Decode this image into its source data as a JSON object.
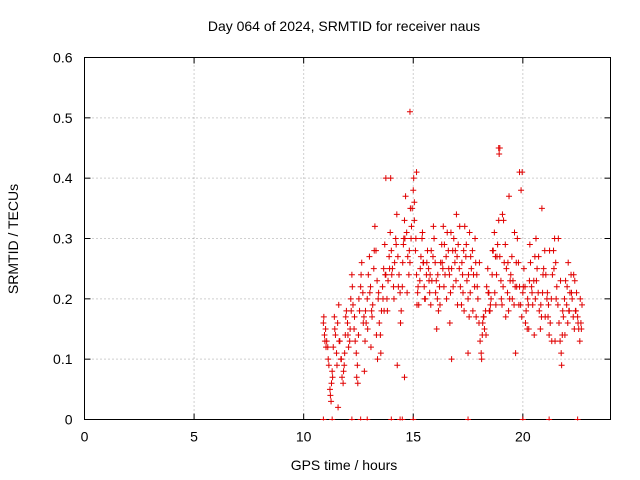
{
  "chart_data": {
    "type": "scatter",
    "title": "Day 064 of 2024, SRMTID for receiver naus",
    "xlabel": "GPS time / hours",
    "ylabel": "SRMTID / TECUs",
    "xlim": [
      0,
      24
    ],
    "ylim": [
      0,
      0.6
    ],
    "xticks": [
      0,
      5,
      10,
      15,
      20
    ],
    "yticks": [
      0,
      0.1,
      0.2,
      0.3,
      0.4,
      0.5,
      0.6
    ],
    "xtick_labels": [
      "0",
      "5",
      "10",
      "15",
      "20"
    ],
    "ytick_labels": [
      "0",
      "0.1",
      "0.2",
      "0.3",
      "0.4",
      "0.5",
      "0.6"
    ],
    "grid": true,
    "legend": "none",
    "series": [
      {
        "name": "SRMTID",
        "marker": "+",
        "color": "#e00000",
        "x": [
          10.9,
          10.95,
          11.0,
          11.05,
          11.1,
          11.15,
          11.2,
          11.25,
          11.3,
          11.35,
          11.4,
          11.45,
          11.5,
          11.55,
          11.6,
          11.65,
          11.7,
          11.75,
          11.8,
          11.85,
          11.9,
          11.95,
          12.0,
          12.05,
          12.1,
          12.15,
          12.2,
          12.25,
          12.3,
          12.35,
          12.4,
          12.45,
          12.5,
          12.55,
          12.6,
          12.65,
          12.7,
          12.75,
          12.8,
          12.85,
          12.9,
          12.95,
          13.0,
          13.05,
          13.1,
          13.15,
          13.2,
          13.25,
          13.3,
          13.35,
          13.4,
          13.45,
          13.5,
          13.55,
          13.6,
          13.65,
          13.7,
          13.75,
          13.8,
          13.85,
          13.9,
          13.95,
          14.0,
          14.05,
          14.1,
          14.15,
          14.2,
          14.25,
          14.3,
          14.35,
          14.4,
          14.45,
          14.5,
          14.55,
          14.6,
          14.65,
          14.7,
          14.75,
          14.8,
          14.85,
          14.9,
          14.95,
          15.0,
          15.05,
          15.1,
          15.15,
          15.2,
          15.25,
          15.3,
          15.35,
          15.4,
          15.45,
          15.5,
          15.55,
          15.6,
          15.65,
          15.7,
          15.75,
          15.8,
          15.85,
          15.9,
          15.95,
          16.0,
          16.05,
          16.1,
          16.15,
          16.2,
          16.25,
          16.3,
          16.35,
          16.4,
          16.45,
          16.5,
          16.55,
          16.6,
          16.65,
          16.7,
          16.75,
          16.8,
          16.85,
          16.9,
          16.95,
          17.0,
          17.05,
          17.1,
          17.15,
          17.2,
          17.25,
          17.3,
          17.35,
          17.4,
          17.45,
          17.5,
          17.55,
          17.6,
          17.65,
          17.7,
          17.75,
          17.8,
          17.85,
          17.9,
          17.95,
          18.0,
          18.05,
          18.1,
          18.15,
          18.2,
          18.25,
          18.3,
          18.35,
          18.4,
          18.45,
          18.5,
          18.55,
          18.6,
          18.65,
          18.7,
          18.75,
          18.8,
          18.85,
          18.9,
          18.95,
          19.0,
          19.05,
          19.1,
          19.15,
          19.2,
          19.25,
          19.3,
          19.35,
          19.4,
          19.45,
          19.5,
          19.55,
          19.6,
          19.65,
          19.7,
          19.75,
          19.8,
          19.85,
          19.9,
          19.95,
          20.0,
          20.05,
          20.1,
          20.15,
          20.2,
          20.25,
          20.3,
          20.35,
          20.4,
          20.45,
          20.5,
          20.55,
          20.6,
          20.65,
          20.7,
          20.75,
          20.8,
          20.85,
          20.9,
          20.95,
          21.0,
          21.05,
          21.1,
          21.15,
          21.2,
          21.25,
          21.3,
          21.35,
          21.4,
          21.45,
          21.5,
          21.55,
          21.6,
          21.65,
          21.7,
          21.75,
          21.8,
          21.85,
          21.9,
          21.95,
          22.0,
          22.05,
          22.1,
          22.15,
          22.2,
          22.25,
          22.3,
          22.35,
          22.4,
          22.45,
          22.5,
          22.55,
          22.6,
          22.65,
          22.7,
          10.92,
          11.02,
          11.12,
          11.22,
          11.32,
          11.42,
          11.52,
          11.62,
          11.72,
          11.82,
          11.92,
          12.02,
          12.12,
          12.22,
          12.32,
          12.42,
          12.52,
          12.62,
          12.72,
          12.82,
          12.92,
          13.02,
          13.12,
          13.22,
          13.32,
          13.42,
          13.52,
          13.62,
          13.72,
          13.82,
          13.92,
          14.02,
          14.12,
          14.22,
          14.32,
          14.42,
          14.52,
          14.62,
          14.72,
          14.82,
          14.92,
          15.02,
          15.12,
          15.22,
          15.32,
          15.42,
          15.52,
          15.62,
          15.72,
          15.82,
          15.92,
          16.02,
          16.12,
          16.22,
          16.32,
          16.42,
          16.52,
          16.62,
          16.72,
          16.82,
          16.92,
          17.02,
          17.12,
          17.22,
          17.32,
          17.42,
          17.52,
          17.62,
          17.72,
          17.82,
          17.92,
          18.02,
          18.12,
          18.22,
          18.32,
          18.42,
          18.52,
          18.62,
          18.72,
          18.82,
          18.92,
          19.02,
          19.12,
          19.22,
          19.32,
          19.42,
          19.52,
          19.62,
          19.72,
          19.82,
          19.92,
          20.02,
          20.12,
          20.22,
          20.32,
          20.42,
          20.52,
          20.62,
          20.72,
          20.82,
          20.92,
          21.02,
          21.12,
          21.22,
          21.32,
          21.42,
          21.52,
          21.62,
          21.72,
          21.82,
          21.92,
          22.02,
          22.12,
          22.22,
          22.32,
          22.42,
          22.52,
          22.62,
          10.97,
          11.27,
          11.57,
          11.87,
          12.17,
          12.47,
          12.77,
          13.07,
          13.37,
          13.67,
          13.97,
          14.27,
          14.57,
          14.87,
          15.17,
          15.47,
          15.77,
          16.07,
          16.37,
          16.67,
          16.97,
          17.27,
          17.57,
          17.87,
          18.17,
          18.47,
          18.77,
          19.07,
          19.37,
          19.67,
          19.97,
          20.27,
          20.57,
          20.87,
          21.17,
          21.47,
          21.77,
          22.07,
          22.37,
          22.67,
          14.85,
          15.15,
          18.9,
          18.95,
          19.85,
          13.75,
          16.75,
          14.6,
          15.05,
          17.5
        ],
        "y": [
          0.16,
          0.14,
          0.15,
          0.13,
          0.12,
          0.09,
          0.05,
          0.03,
          0.08,
          0.12,
          0.17,
          0.14,
          0.11,
          0.16,
          0.19,
          0.13,
          0.1,
          0.07,
          0.06,
          0.09,
          0.14,
          0.18,
          0.16,
          0.12,
          0.13,
          0.2,
          0.24,
          0.19,
          0.15,
          0.13,
          0.11,
          0.09,
          0.14,
          0.18,
          0.22,
          0.26,
          0.21,
          0.17,
          0.13,
          0.16,
          0.2,
          0.24,
          0.27,
          0.22,
          0.18,
          0.19,
          0.25,
          0.32,
          0.28,
          0.23,
          0.2,
          0.16,
          0.14,
          0.18,
          0.22,
          0.25,
          0.29,
          0.24,
          0.2,
          0.23,
          0.27,
          0.31,
          0.28,
          0.25,
          0.22,
          0.26,
          0.3,
          0.34,
          0.27,
          0.24,
          0.21,
          0.18,
          0.22,
          0.29,
          0.33,
          0.37,
          0.31,
          0.27,
          0.24,
          0.26,
          0.3,
          0.35,
          0.38,
          0.33,
          0.28,
          0.24,
          0.21,
          0.19,
          0.23,
          0.27,
          0.3,
          0.26,
          0.22,
          0.2,
          0.24,
          0.28,
          0.25,
          0.21,
          0.19,
          0.23,
          0.27,
          0.3,
          0.26,
          0.23,
          0.2,
          0.18,
          0.22,
          0.26,
          0.29,
          0.25,
          0.22,
          0.24,
          0.27,
          0.31,
          0.28,
          0.24,
          0.21,
          0.25,
          0.28,
          0.3,
          0.26,
          0.23,
          0.27,
          0.29,
          0.25,
          0.22,
          0.19,
          0.24,
          0.28,
          0.32,
          0.27,
          0.23,
          0.2,
          0.17,
          0.21,
          0.25,
          0.28,
          0.24,
          0.22,
          0.26,
          0.24,
          0.2,
          0.16,
          0.13,
          0.11,
          0.14,
          0.17,
          0.15,
          0.18,
          0.22,
          0.25,
          0.21,
          0.18,
          0.2,
          0.24,
          0.28,
          0.31,
          0.27,
          0.24,
          0.29,
          0.33,
          0.27,
          0.23,
          0.19,
          0.22,
          0.26,
          0.29,
          0.25,
          0.21,
          0.18,
          0.2,
          0.24,
          0.27,
          0.23,
          0.19,
          0.22,
          0.26,
          0.3,
          0.26,
          0.22,
          0.19,
          0.17,
          0.21,
          0.25,
          0.22,
          0.18,
          0.15,
          0.19,
          0.23,
          0.26,
          0.22,
          0.19,
          0.23,
          0.27,
          0.3,
          0.25,
          0.21,
          0.18,
          0.15,
          0.17,
          0.21,
          0.25,
          0.28,
          0.24,
          0.2,
          0.17,
          0.14,
          0.16,
          0.2,
          0.24,
          0.28,
          0.3,
          0.26,
          0.22,
          0.19,
          0.16,
          0.13,
          0.11,
          0.14,
          0.17,
          0.2,
          0.23,
          0.19,
          0.16,
          0.18,
          0.21,
          0.24,
          0.2,
          0.17,
          0.15,
          0.18,
          0.21,
          0.17,
          0.15,
          0.13,
          0.16,
          0.19,
          0.17,
          0.12,
          0.1,
          0.04,
          0.07,
          0.15,
          0.09,
          0.13,
          0.1,
          0.08,
          0.17,
          0.14,
          0.15,
          0.22,
          0.17,
          0.07,
          0.2,
          0.24,
          0.16,
          0.18,
          0.15,
          0.21,
          0.17,
          0.28,
          0.14,
          0.21,
          0.11,
          0.2,
          0.24,
          0.18,
          0.25,
          0.24,
          0.2,
          0.29,
          0.22,
          0.16,
          0.26,
          0.3,
          0.21,
          0.28,
          0.32,
          0.4,
          0.3,
          0.22,
          0.25,
          0.31,
          0.2,
          0.26,
          0.23,
          0.28,
          0.32,
          0.21,
          0.24,
          0.19,
          0.26,
          0.29,
          0.2,
          0.25,
          0.31,
          0.22,
          0.28,
          0.19,
          0.32,
          0.26,
          0.18,
          0.29,
          0.24,
          0.27,
          0.18,
          0.3,
          0.22,
          0.26,
          0.1,
          0.17,
          0.14,
          0.21,
          0.19,
          0.28,
          0.21,
          0.27,
          0.44,
          0.2,
          0.33,
          0.17,
          0.26,
          0.23,
          0.2,
          0.31,
          0.22,
          0.19,
          0.38,
          0.22,
          0.16,
          0.2,
          0.29,
          0.21,
          0.14,
          0.23,
          0.27,
          0.19,
          0.24,
          0.17,
          0.21,
          0.28,
          0.13,
          0.25,
          0.2,
          0.3,
          0.23,
          0.18,
          0.14,
          0.22,
          0.18,
          0.21,
          0.24,
          0.18,
          0.16,
          0.2,
          0.13,
          0.06,
          0.02,
          0.11,
          0.18,
          0.06,
          0.08,
          0.12,
          0.1,
          0.18,
          0.4,
          0.09,
          0.3,
          0.35,
          0.19,
          0.26,
          0.24,
          0.15,
          0.32,
          0.16,
          0.34,
          0.21,
          0.31,
          0.17,
          0.16,
          0.18,
          0.19,
          0.34,
          0.37,
          0.11,
          0.41,
          0.15,
          0.2,
          0.35,
          0.19,
          0.13,
          0.09,
          0.26,
          0.23,
          0.15,
          0.51,
          0.41,
          0.45,
          0.45,
          0.41,
          0.4,
          0.1,
          0.07,
          0.36,
          0.11
        ]
      }
    ],
    "zero_ticks_x": [
      10.9,
      11.3,
      12.2,
      12.6,
      12.9,
      14.0,
      14.4,
      14.5,
      15.0,
      17.5,
      20.0,
      21.2,
      22.5
    ]
  }
}
